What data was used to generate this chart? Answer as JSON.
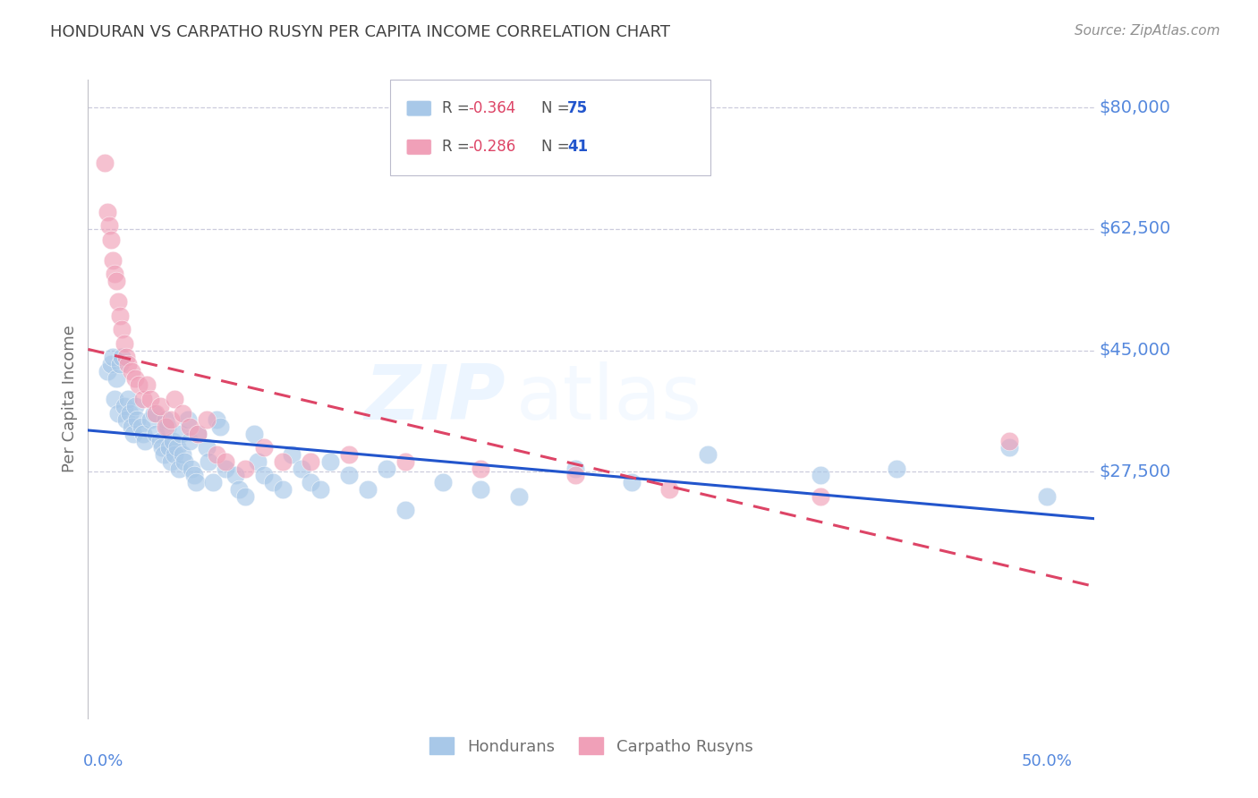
{
  "title": "HONDURAN VS CARPATHO RUSYN PER CAPITA INCOME CORRELATION CHART",
  "source": "Source: ZipAtlas.com",
  "ylabel": "Per Capita Income",
  "watermark_zip": "ZIP",
  "watermark_atlas": "atlas",
  "legend_blue_r": "-0.364",
  "legend_blue_n": "75",
  "legend_pink_r": "-0.286",
  "legend_pink_n": "41",
  "blue_scatter": "#A8C8E8",
  "pink_scatter": "#F0A0B8",
  "trendline_blue": "#2255CC",
  "trendline_pink": "#DD4466",
  "title_color": "#404040",
  "axis_label_color": "#5588DD",
  "grid_color": "#CCCCDD",
  "background_color": "#FFFFFF",
  "ytick_values": [
    27500,
    45000,
    62500,
    80000
  ],
  "ytick_labels": [
    "$27,500",
    "$45,000",
    "$62,500",
    "$80,000"
  ],
  "xmin": -0.008,
  "xmax": 0.525,
  "ymin": -8000,
  "ymax": 84000,
  "honduran_x": [
    0.002,
    0.004,
    0.005,
    0.006,
    0.007,
    0.008,
    0.009,
    0.01,
    0.011,
    0.012,
    0.013,
    0.014,
    0.015,
    0.016,
    0.017,
    0.018,
    0.02,
    0.021,
    0.022,
    0.025,
    0.027,
    0.028,
    0.03,
    0.031,
    0.032,
    0.033,
    0.034,
    0.035,
    0.036,
    0.037,
    0.038,
    0.039,
    0.04,
    0.041,
    0.042,
    0.043,
    0.045,
    0.046,
    0.047,
    0.048,
    0.049,
    0.05,
    0.055,
    0.056,
    0.058,
    0.06,
    0.062,
    0.065,
    0.07,
    0.072,
    0.075,
    0.08,
    0.082,
    0.085,
    0.09,
    0.095,
    0.1,
    0.105,
    0.11,
    0.115,
    0.12,
    0.13,
    0.14,
    0.15,
    0.16,
    0.18,
    0.2,
    0.22,
    0.25,
    0.28,
    0.32,
    0.38,
    0.42,
    0.48,
    0.5
  ],
  "honduran_y": [
    42000,
    43000,
    44000,
    38000,
    41000,
    36000,
    43000,
    44000,
    37000,
    35000,
    38000,
    36000,
    34000,
    33000,
    37000,
    35000,
    34000,
    33000,
    32000,
    35000,
    36000,
    33000,
    32000,
    31000,
    30000,
    35000,
    34000,
    31000,
    29000,
    32000,
    30000,
    31000,
    28000,
    33000,
    30000,
    29000,
    35000,
    32000,
    28000,
    27000,
    26000,
    33000,
    31000,
    29000,
    26000,
    35000,
    34000,
    28000,
    27000,
    25000,
    24000,
    33000,
    29000,
    27000,
    26000,
    25000,
    30000,
    28000,
    26000,
    25000,
    29000,
    27000,
    25000,
    28000,
    22000,
    26000,
    25000,
    24000,
    28000,
    26000,
    30000,
    27000,
    28000,
    31000,
    24000
  ],
  "carpatho_x": [
    0.001,
    0.002,
    0.003,
    0.004,
    0.005,
    0.006,
    0.007,
    0.008,
    0.009,
    0.01,
    0.011,
    0.012,
    0.013,
    0.015,
    0.017,
    0.019,
    0.021,
    0.023,
    0.025,
    0.028,
    0.03,
    0.033,
    0.036,
    0.038,
    0.042,
    0.046,
    0.05,
    0.055,
    0.06,
    0.065,
    0.075,
    0.085,
    0.095,
    0.11,
    0.13,
    0.16,
    0.2,
    0.25,
    0.3,
    0.38,
    0.48
  ],
  "carpatho_y": [
    72000,
    65000,
    63000,
    61000,
    58000,
    56000,
    55000,
    52000,
    50000,
    48000,
    46000,
    44000,
    43000,
    42000,
    41000,
    40000,
    38000,
    40000,
    38000,
    36000,
    37000,
    34000,
    35000,
    38000,
    36000,
    34000,
    33000,
    35000,
    30000,
    29000,
    28000,
    31000,
    29000,
    29000,
    30000,
    29000,
    28000,
    27000,
    25000,
    24000,
    32000
  ]
}
